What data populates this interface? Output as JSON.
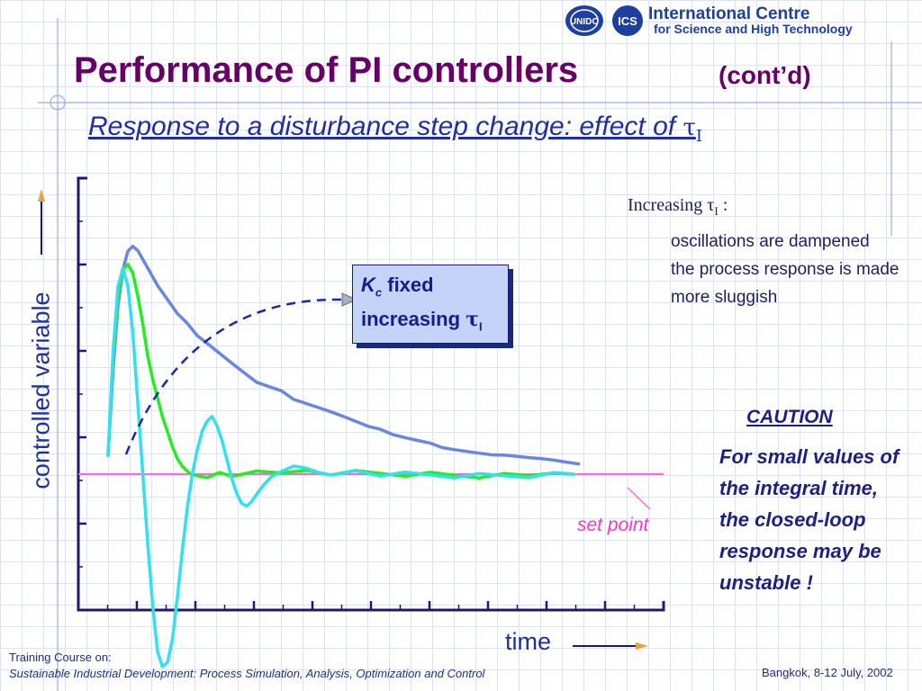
{
  "header": {
    "logo_un_text": "UNIDO",
    "logo_ics_text": "ICS",
    "org_line1": "International Centre",
    "org_line2": "for Science and High Technology"
  },
  "slide": {
    "title": "Performance of PI controllers",
    "title_suffix": "(cont’d)",
    "subtitle_text": "Response to a disturbance step change: effect of ",
    "subtitle_tau": "τ",
    "subtitle_sub": "I"
  },
  "callout": {
    "kc_symbol": "K",
    "kc_sub": "c",
    "fixed_text": " fixed",
    "increasing_text": "increasing ",
    "tau": "τ",
    "tau_sub": "I"
  },
  "notes": {
    "head_text": "Increasing ",
    "head_tau": "τ",
    "head_sub": "I",
    "head_colon": " :",
    "points": [
      "oscillations are dampened",
      "the process response is made more sluggish"
    ]
  },
  "caution": {
    "title": "CAUTION",
    "body": "For small values of the integral time, the closed-loop response may be unstable !"
  },
  "footer": {
    "course_label": "Training Course on:",
    "course_name": "Sustainable Industrial Development: Process Simulation, Analysis, Optimization and Control",
    "location_date": "Bangkok, 8-12 July, 2002"
  },
  "chart_data": {
    "type": "line",
    "title": "",
    "xlabel": "time",
    "ylabel": "controlled variable",
    "setpoint_label": "set point",
    "xlim": [
      0,
      20
    ],
    "ylim": [
      -5,
      5
    ],
    "grid": false,
    "setpoint": 0,
    "x_ticks": 20,
    "y_ticks": 10,
    "colors": {
      "axis": "#1a1a6e",
      "setpoint": "#ff66dd",
      "arrow": "#1a2a9a",
      "deco": "#9aaee0"
    },
    "series": [
      {
        "color": "#6b86e0",
        "x": [
          0.0,
          0.2,
          0.4,
          0.6,
          0.8,
          1.0,
          1.2,
          1.4,
          1.6,
          1.8,
          2.0,
          2.4,
          2.8,
          3.2,
          3.6,
          4.0,
          4.5,
          5.0,
          5.5,
          6.0,
          6.5,
          7.0,
          7.5,
          8.0,
          8.5,
          9.0,
          9.5,
          10.0,
          10.5,
          11.0,
          11.5,
          12.0,
          12.5,
          13.0,
          13.5,
          14.0,
          14.5,
          15.0,
          15.5,
          16.0,
          16.5,
          17.0,
          17.5,
          18.0,
          18.5,
          19.0
        ],
        "y": [
          0.4,
          2.2,
          3.6,
          4.4,
          4.8,
          4.9,
          4.8,
          4.6,
          4.4,
          4.2,
          4.0,
          3.7,
          3.4,
          3.2,
          2.95,
          2.8,
          2.6,
          2.4,
          2.2,
          2.0,
          1.9,
          1.8,
          1.6,
          1.5,
          1.4,
          1.3,
          1.2,
          1.1,
          1.0,
          0.95,
          0.85,
          0.8,
          0.75,
          0.7,
          0.6,
          0.55,
          0.5,
          0.45,
          0.4,
          0.38,
          0.35,
          0.32,
          0.3,
          0.28,
          0.25,
          0.22
        ]
      },
      {
        "color": "#22ee22",
        "x": [
          0.0,
          0.2,
          0.4,
          0.6,
          0.8,
          1.0,
          1.2,
          1.4,
          1.6,
          1.8,
          2.0,
          2.2,
          2.4,
          2.6,
          2.8,
          3.0,
          3.3,
          3.6,
          4.0,
          4.5,
          5.0,
          6.0,
          7.0,
          8.0,
          9.0,
          10.0,
          11.0,
          12.0,
          13.0,
          14.0,
          15.0,
          16.0,
          17.0,
          18.0,
          18.8
        ],
        "y": [
          0.4,
          2.4,
          3.8,
          4.4,
          4.5,
          4.3,
          3.8,
          3.2,
          2.5,
          2.0,
          1.6,
          1.2,
          0.9,
          0.6,
          0.35,
          0.2,
          0.05,
          0.0,
          -0.05,
          0.05,
          -0.05,
          0.05,
          0.0,
          0.05,
          -0.05,
          0.05,
          0.0,
          -0.05,
          0.05,
          0.0,
          -0.05,
          0.05,
          0.0,
          0.05,
          0.0
        ]
      },
      {
        "color": "#33e0ee",
        "x": [
          0.0,
          0.2,
          0.4,
          0.6,
          0.8,
          1.0,
          1.2,
          1.4,
          1.6,
          1.8,
          2.0,
          2.2,
          2.4,
          2.6,
          2.8,
          3.0,
          3.2,
          3.4,
          3.6,
          3.8,
          4.0,
          4.2,
          4.4,
          4.6,
          4.8,
          5.0,
          5.2,
          5.4,
          5.6,
          5.8,
          6.0,
          6.3,
          6.6,
          7.0,
          7.5,
          8.0,
          8.5,
          9.0,
          10.0,
          11.0,
          12.0,
          13.0,
          14.0,
          15.0,
          16.0,
          17.0,
          18.0,
          18.8
        ],
        "y": [
          0.4,
          2.6,
          4.0,
          4.4,
          4.0,
          3.0,
          1.5,
          0.0,
          -1.5,
          -2.8,
          -3.8,
          -4.1,
          -4.0,
          -3.5,
          -2.6,
          -1.6,
          -0.7,
          0.0,
          0.5,
          0.9,
          1.1,
          1.2,
          1.0,
          0.7,
          0.3,
          -0.1,
          -0.4,
          -0.6,
          -0.65,
          -0.55,
          -0.4,
          -0.2,
          -0.05,
          0.05,
          0.15,
          0.1,
          0.0,
          -0.05,
          0.05,
          -0.05,
          0.05,
          0.0,
          -0.05,
          0.05,
          0.0,
          -0.05,
          0.05,
          0.0
        ]
      }
    ]
  }
}
